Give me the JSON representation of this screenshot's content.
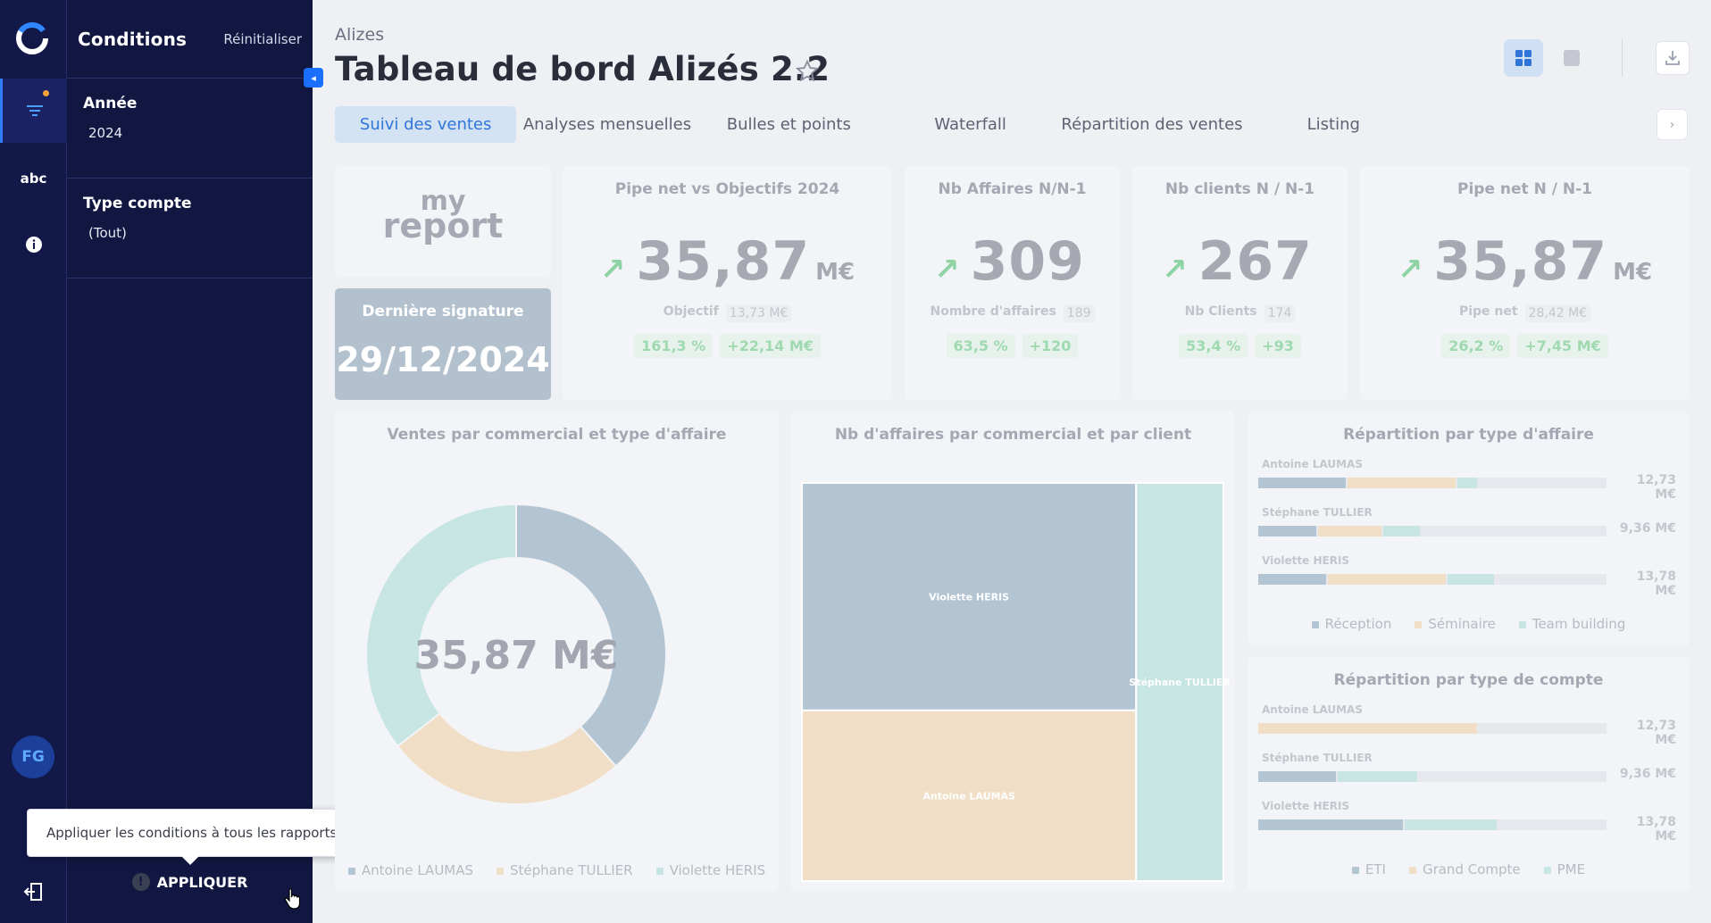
{
  "sidebar": {
    "rail": {
      "abc_label": "abc",
      "avatar_initials": "FG"
    },
    "conditions": {
      "title": "Conditions",
      "reset_label": "Réinitialiser",
      "filters": [
        {
          "label": "Année",
          "value": "2024"
        },
        {
          "label": "Type compte",
          "value": "(Tout)"
        }
      ],
      "apply_label": "APPLIQUER",
      "apply_tooltip": "Appliquer les conditions à tous les rapports"
    }
  },
  "header": {
    "breadcrumb": "Alizes",
    "title": "Tableau de bord Alizés 2.2"
  },
  "tabs": [
    "Suivi des ventes",
    "Analyses mensuelles",
    "Bulles et points",
    "Waterfall",
    "Répartition des ventes",
    "Listing"
  ],
  "logo_card": {
    "line1": "my",
    "line2": "report"
  },
  "last_signature": {
    "label": "Dernière signature",
    "value": "29/12/2024"
  },
  "kpis": [
    {
      "title": "Pipe net vs Objectifs 2024",
      "value": "35,87",
      "unit": "M€",
      "sub_label": "Objectif",
      "sub_value": "13,73 M€",
      "pct": "161,3 %",
      "delta": "+22,14 M€"
    },
    {
      "title": "Nb Affaires N/N-1",
      "value": "309",
      "unit": "",
      "sub_label": "Nombre d'affaires",
      "sub_value": "189",
      "pct": "63,5 %",
      "delta": "+120"
    },
    {
      "title": "Nb clients N / N-1",
      "value": "267",
      "unit": "",
      "sub_label": "Nb Clients",
      "sub_value": "174",
      "pct": "53,4 %",
      "delta": "+93"
    },
    {
      "title": "Pipe net N / N-1",
      "value": "35,87",
      "unit": "M€",
      "sub_label": "Pipe net",
      "sub_value": "28,42 M€",
      "pct": "26,2 %",
      "delta": "+7,45 M€"
    }
  ],
  "colors": {
    "c1": "#b3c4d3",
    "c2": "#f0dfc6",
    "c3": "#c6e5e3",
    "accent": "#2f74d8"
  },
  "chart_data": [
    {
      "type": "pie",
      "title": "Ventes par commercial et type d'affaire",
      "center_label": "35,87 M€",
      "categories": [
        "Violette HERIS",
        "Stéphane TULLIER",
        "Antoine LAUMAS"
      ],
      "values": [
        13.78,
        9.36,
        12.73
      ],
      "legend": [
        "Antoine LAUMAS",
        "Stéphane TULLIER",
        "Violette HERIS"
      ]
    },
    {
      "type": "heatmap",
      "title": "Nb d'affaires par commercial et par client",
      "categories": [
        "Violette HERIS",
        "Antoine LAUMAS",
        "Stéphane TULLIER"
      ],
      "values": [
        140,
        105,
        64
      ]
    },
    {
      "type": "bar",
      "title": "Répartition par type d'affaire",
      "categories": [
        "Antoine LAUMAS",
        "Stéphane TULLIER",
        "Violette HERIS"
      ],
      "totals": [
        "12,73 M€",
        "9,36 M€",
        "13,78 M€"
      ],
      "series": [
        {
          "name": "Réception",
          "values": [
            3.7,
            2.5,
            2.9
          ]
        },
        {
          "name": "Séminaire",
          "values": [
            4.6,
            2.7,
            5.0
          ]
        },
        {
          "name": "Team building",
          "values": [
            0.9,
            1.6,
            2.0
          ]
        }
      ]
    },
    {
      "type": "bar",
      "title": "Répartition par type de compte",
      "categories": [
        "Antoine LAUMAS",
        "Stéphane TULLIER",
        "Violette HERIS"
      ],
      "totals": [
        "12,73 M€",
        "9,36 M€",
        "13,78 M€"
      ],
      "series": [
        {
          "name": "ETI",
          "values": [
            0,
            3.3,
            6.1
          ]
        },
        {
          "name": "Grand Compte",
          "values": [
            9.2,
            0,
            0
          ]
        },
        {
          "name": "PME",
          "values": [
            0,
            3.4,
            3.9
          ]
        }
      ]
    }
  ]
}
